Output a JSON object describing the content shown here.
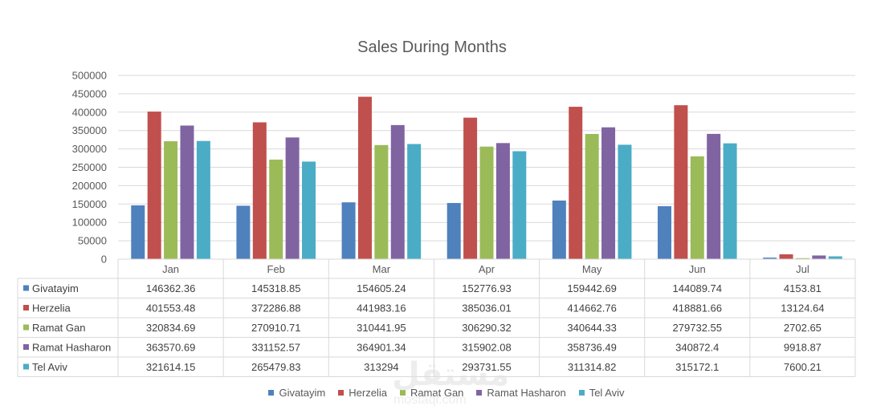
{
  "chart_data": {
    "type": "bar",
    "title": "Sales During Months",
    "categories": [
      "Jan",
      "Feb",
      "Mar",
      "Apr",
      "May",
      "Jun",
      "Jul"
    ],
    "ylim": [
      0,
      500000
    ],
    "yticks": [
      0,
      50000,
      100000,
      150000,
      200000,
      250000,
      300000,
      350000,
      400000,
      450000,
      500000
    ],
    "grid": true,
    "legend_position": "bottom",
    "data_table": true,
    "series": [
      {
        "name": "Givatayim",
        "color": "#4f81bd",
        "values": [
          146362.36,
          145318.85,
          154605.24,
          152776.93,
          159442.69,
          144089.74,
          4153.81
        ]
      },
      {
        "name": "Herzelia",
        "color": "#c0504d",
        "values": [
          401553.48,
          372286.88,
          441983.16,
          385036.01,
          414662.76,
          418881.66,
          13124.64
        ]
      },
      {
        "name": "Ramat Gan",
        "color": "#9bbb59",
        "values": [
          320834.69,
          270910.71,
          310441.95,
          306290.32,
          340644.33,
          279732.55,
          2702.65
        ]
      },
      {
        "name": "Ramat Hasharon",
        "color": "#8064a2",
        "values": [
          363570.69,
          331152.57,
          364901.34,
          315902.08,
          358736.49,
          340872.4,
          9918.87
        ]
      },
      {
        "name": "Tel Aviv",
        "color": "#4bacc6",
        "values": [
          321614.15,
          265479.83,
          313294,
          293731.55,
          311314.82,
          315172.1,
          7600.21
        ]
      }
    ]
  },
  "watermark": {
    "text": "مستقل",
    "sub": "mostaql.com"
  }
}
